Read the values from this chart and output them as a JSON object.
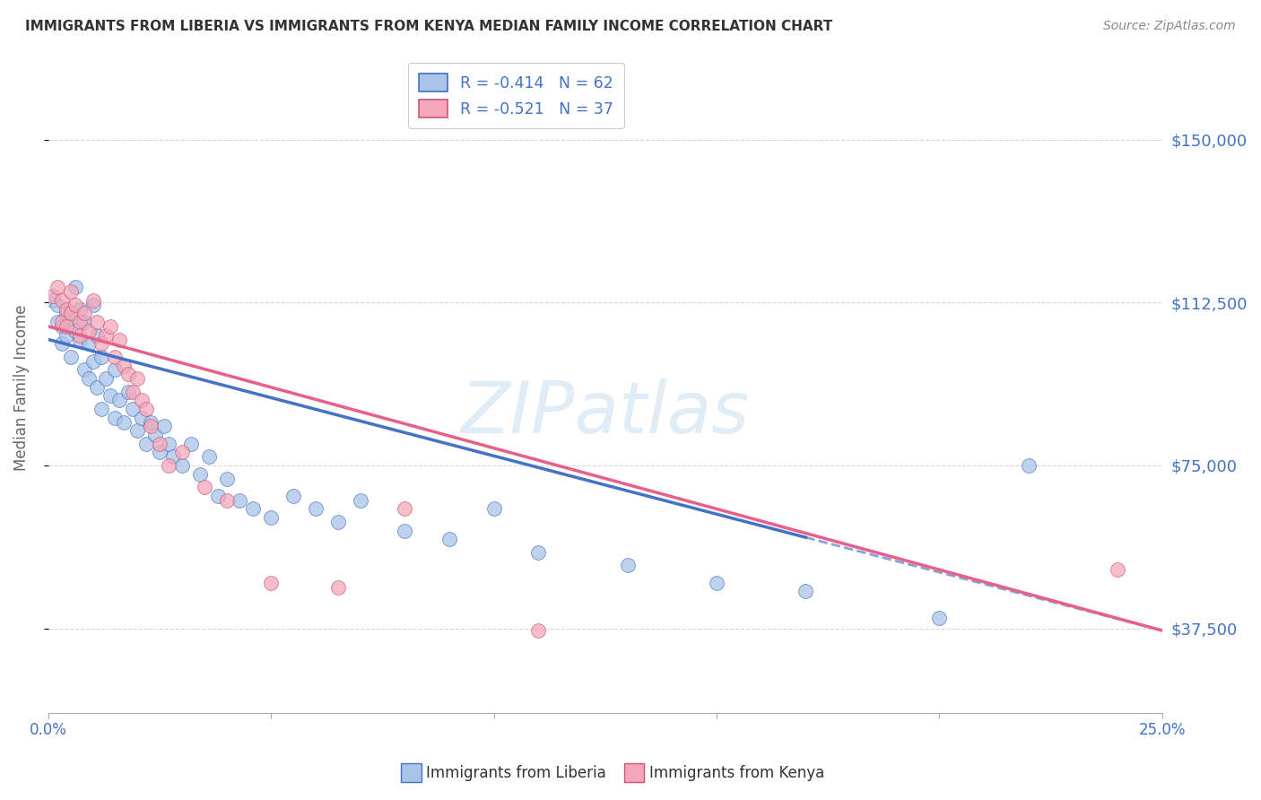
{
  "title": "IMMIGRANTS FROM LIBERIA VS IMMIGRANTS FROM KENYA MEDIAN FAMILY INCOME CORRELATION CHART",
  "source": "Source: ZipAtlas.com",
  "ylabel": "Median Family Income",
  "yticks": [
    37500,
    75000,
    112500,
    150000
  ],
  "ytick_labels": [
    "$37,500",
    "$75,000",
    "$112,500",
    "$150,000"
  ],
  "xlim": [
    0.0,
    0.25
  ],
  "ylim": [
    18000,
    168000
  ],
  "watermark": "ZIPatlas",
  "legend_liberia": "R = -0.414   N = 62",
  "legend_kenya": "R = -0.521   N = 37",
  "color_liberia": "#aac4e8",
  "color_kenya": "#f4a7b9",
  "color_liberia_line": "#4472c4",
  "color_kenya_line": "#e8608a",
  "liberia_intercept": 104000,
  "liberia_slope": -268000,
  "kenya_intercept": 107000,
  "kenya_slope": -280000,
  "scatter_liberia_x": [
    0.001,
    0.002,
    0.002,
    0.003,
    0.003,
    0.004,
    0.004,
    0.005,
    0.005,
    0.006,
    0.006,
    0.007,
    0.007,
    0.008,
    0.008,
    0.009,
    0.009,
    0.01,
    0.01,
    0.011,
    0.011,
    0.012,
    0.012,
    0.013,
    0.014,
    0.015,
    0.015,
    0.016,
    0.017,
    0.018,
    0.019,
    0.02,
    0.021,
    0.022,
    0.023,
    0.024,
    0.025,
    0.026,
    0.027,
    0.028,
    0.03,
    0.032,
    0.034,
    0.036,
    0.038,
    0.04,
    0.043,
    0.046,
    0.05,
    0.055,
    0.06,
    0.065,
    0.07,
    0.08,
    0.09,
    0.1,
    0.11,
    0.13,
    0.15,
    0.17,
    0.2,
    0.22
  ],
  "scatter_liberia_y": [
    113000,
    112000,
    108000,
    107000,
    103000,
    110000,
    105000,
    109000,
    100000,
    116000,
    106000,
    111000,
    104000,
    108000,
    97000,
    103000,
    95000,
    112000,
    99000,
    105000,
    93000,
    100000,
    88000,
    95000,
    91000,
    86000,
    97000,
    90000,
    85000,
    92000,
    88000,
    83000,
    86000,
    80000,
    85000,
    82000,
    78000,
    84000,
    80000,
    77000,
    75000,
    80000,
    73000,
    77000,
    68000,
    72000,
    67000,
    65000,
    63000,
    68000,
    65000,
    62000,
    67000,
    60000,
    58000,
    65000,
    55000,
    52000,
    48000,
    46000,
    40000,
    75000
  ],
  "scatter_kenya_x": [
    0.001,
    0.002,
    0.003,
    0.003,
    0.004,
    0.004,
    0.005,
    0.005,
    0.006,
    0.007,
    0.007,
    0.008,
    0.009,
    0.01,
    0.011,
    0.012,
    0.013,
    0.014,
    0.015,
    0.016,
    0.017,
    0.018,
    0.019,
    0.02,
    0.021,
    0.022,
    0.023,
    0.025,
    0.027,
    0.03,
    0.035,
    0.04,
    0.05,
    0.065,
    0.08,
    0.11,
    0.24
  ],
  "scatter_kenya_y": [
    114000,
    116000,
    113000,
    108000,
    111000,
    107000,
    115000,
    110000,
    112000,
    108000,
    105000,
    110000,
    106000,
    113000,
    108000,
    103000,
    105000,
    107000,
    100000,
    104000,
    98000,
    96000,
    92000,
    95000,
    90000,
    88000,
    84000,
    80000,
    75000,
    78000,
    70000,
    67000,
    48000,
    47000,
    65000,
    37000,
    51000
  ],
  "background_color": "#ffffff",
  "grid_color": "#cccccc",
  "title_color": "#333333",
  "tick_color": "#4472c4"
}
